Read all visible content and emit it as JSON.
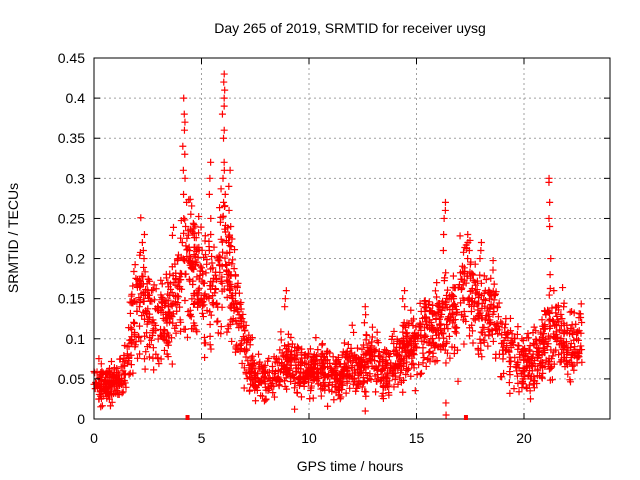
{
  "chart_data": {
    "type": "scatter",
    "title": "Day 265 of 2019, SRMTID for receiver uysg",
    "xlabel": "GPS time / hours",
    "ylabel": "SRMTID / TECUs",
    "xlim": [
      0,
      24
    ],
    "ylim": [
      0,
      0.45
    ],
    "x_ticks": [
      0,
      5,
      10,
      15,
      20
    ],
    "x_tick_labels": [
      "0",
      "5",
      "10",
      "15",
      "20"
    ],
    "y_ticks": [
      0,
      0.05,
      0.1,
      0.15,
      0.2,
      0.25,
      0.3,
      0.35,
      0.4,
      0.45
    ],
    "y_tick_labels": [
      "0",
      "0.05",
      "0.1",
      "0.15",
      "0.2",
      "0.25",
      "0.3",
      "0.35",
      "0.4",
      "0.45"
    ],
    "grid": true,
    "marker": "plus",
    "color": "#ff0000",
    "gap_markers_x": [
      4.35,
      17.3
    ],
    "trend": [
      [
        0.0,
        0.05
      ],
      [
        0.5,
        0.04
      ],
      [
        1.0,
        0.045
      ],
      [
        1.4,
        0.06
      ],
      [
        1.8,
        0.11
      ],
      [
        2.2,
        0.16
      ],
      [
        2.6,
        0.12
      ],
      [
        3.0,
        0.12
      ],
      [
        3.5,
        0.14
      ],
      [
        4.0,
        0.17
      ],
      [
        4.4,
        0.2
      ],
      [
        4.8,
        0.17
      ],
      [
        5.2,
        0.17
      ],
      [
        5.6,
        0.16
      ],
      [
        6.0,
        0.2
      ],
      [
        6.5,
        0.16
      ],
      [
        7.0,
        0.09
      ],
      [
        7.5,
        0.05
      ],
      [
        8.0,
        0.05
      ],
      [
        8.5,
        0.06
      ],
      [
        9.0,
        0.07
      ],
      [
        9.5,
        0.06
      ],
      [
        10.0,
        0.06
      ],
      [
        10.5,
        0.065
      ],
      [
        11.0,
        0.055
      ],
      [
        11.5,
        0.05
      ],
      [
        12.0,
        0.07
      ],
      [
        12.5,
        0.065
      ],
      [
        13.0,
        0.075
      ],
      [
        13.5,
        0.06
      ],
      [
        14.0,
        0.07
      ],
      [
        14.5,
        0.09
      ],
      [
        15.0,
        0.1
      ],
      [
        15.5,
        0.11
      ],
      [
        16.0,
        0.12
      ],
      [
        16.5,
        0.13
      ],
      [
        17.0,
        0.155
      ],
      [
        17.5,
        0.16
      ],
      [
        18.0,
        0.13
      ],
      [
        18.5,
        0.14
      ],
      [
        19.0,
        0.1
      ],
      [
        19.5,
        0.08
      ],
      [
        20.0,
        0.07
      ],
      [
        20.5,
        0.065
      ],
      [
        21.0,
        0.1
      ],
      [
        21.5,
        0.11
      ],
      [
        22.0,
        0.09
      ],
      [
        22.5,
        0.1
      ],
      [
        22.7,
        0.11
      ]
    ],
    "spikes": [
      {
        "x": 4.15,
        "values": [
          0.4,
          0.38,
          0.36,
          0.34,
          0.31,
          0.28,
          0.25,
          0.22
        ]
      },
      {
        "x": 4.25,
        "values": [
          0.37,
          0.33,
          0.3,
          0.27,
          0.24
        ]
      },
      {
        "x": 6.0,
        "values": [
          0.43,
          0.42,
          0.4,
          0.38,
          0.35,
          0.32,
          0.3,
          0.27
        ]
      },
      {
        "x": 6.1,
        "values": [
          0.41,
          0.39,
          0.36,
          0.31,
          0.28
        ]
      },
      {
        "x": 6.3,
        "values": [
          0.31,
          0.29,
          0.26,
          0.24,
          0.22
        ]
      },
      {
        "x": 5.4,
        "values": [
          0.32,
          0.3,
          0.28,
          0.25,
          0.23,
          0.21
        ]
      },
      {
        "x": 2.3,
        "values": [
          0.23,
          0.22,
          0.21,
          0.2
        ]
      },
      {
        "x": 16.3,
        "values": [
          0.27,
          0.26,
          0.25,
          0.23,
          0.21
        ]
      },
      {
        "x": 17.4,
        "values": [
          0.23,
          0.22,
          0.21,
          0.2
        ]
      },
      {
        "x": 18.0,
        "values": [
          0.22,
          0.21,
          0.2
        ]
      },
      {
        "x": 21.2,
        "values": [
          0.3,
          0.295,
          0.27,
          0.25,
          0.24,
          0.2,
          0.18
        ]
      },
      {
        "x": 16.4,
        "values": [
          0.02,
          0.005
        ]
      },
      {
        "x": 8.9,
        "values": [
          0.16,
          0.15,
          0.14
        ]
      },
      {
        "x": 12.6,
        "values": [
          0.14,
          0.13,
          0.12,
          0.01
        ]
      },
      {
        "x": 14.4,
        "values": [
          0.16,
          0.15,
          0.14
        ]
      }
    ],
    "point_count_estimate": 2200
  }
}
